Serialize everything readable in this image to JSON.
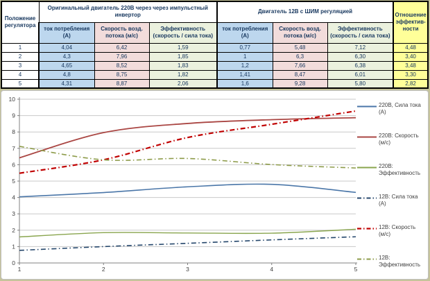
{
  "colors": {
    "col_current": "#BDD7EE",
    "col_speed": "#F2DCDB",
    "col_efficiency": "#EBF1DE",
    "col_ratio": "#FFFF99",
    "header_text": "#17375E"
  },
  "table": {
    "corner_header": "Положение\nрегулятора",
    "group_220_header": "Оригинальный двигатель 220В через через импульстный\nинвертор",
    "group_12_header": "Двигатель 12В с ШИМ регуляцией",
    "ratio_header": "Отношение\nэффектив-\nности",
    "sub_headers": [
      "ток потребления\n(А)",
      "Скорость возд.\nпотока (м/с)",
      "Эффективность\n(скорость / сила тока)",
      "ток потребления\n(А)",
      "Скорость возд.\nпотока (м/с)",
      "Эффективность\n(скорость / сила тока)"
    ],
    "rows": [
      {
        "cells": [
          "1",
          "4,04",
          "6,42",
          "1,59",
          "0,77",
          "5,48",
          "7,12",
          "4,48"
        ]
      },
      {
        "cells": [
          "2",
          "4,3",
          "7,96",
          "1,85",
          "1",
          "6,3",
          "6,30",
          "3,40"
        ]
      },
      {
        "cells": [
          "3",
          "4,65",
          "8,52",
          "1,83",
          "1,2",
          "7,66",
          "6,38",
          "3,48"
        ]
      },
      {
        "cells": [
          "4",
          "4,8",
          "8,75",
          "1,82",
          "1,41",
          "8,47",
          "6,01",
          "3,30"
        ]
      },
      {
        "cells": [
          "5",
          "4,31",
          "8,87",
          "2,06",
          "1,6",
          "9,28",
          "5,80",
          "2,82"
        ]
      }
    ]
  },
  "chart_data": {
    "type": "line",
    "x": [
      1,
      2,
      3,
      4,
      5
    ],
    "x_ticks": [
      1,
      2,
      3,
      4,
      5
    ],
    "y_ticks": [
      0,
      1,
      2,
      3,
      4,
      5,
      6,
      7,
      8,
      9,
      10
    ],
    "xlim": [
      1,
      5
    ],
    "ylim": [
      0,
      10
    ],
    "grid": true,
    "smooth": true,
    "legend_position": "right",
    "grid_color": "#C8C8C8",
    "axis_color": "#808080",
    "tick_label_color": "#404040",
    "series": [
      {
        "name": "220В, Сила тока (А)",
        "label": "220В, Сила тока\n(А)",
        "values": [
          4.04,
          4.3,
          4.65,
          4.8,
          4.31
        ],
        "color": "#4A76A8",
        "dash": "solid",
        "width": 1.6
      },
      {
        "name": "220В: Скорость (м/с)",
        "label": "220В: Скорость\n(м/с)",
        "values": [
          6.42,
          7.96,
          8.52,
          8.75,
          8.87
        ],
        "color": "#AA4643",
        "dash": "solid",
        "width": 1.8
      },
      {
        "name": "220В: Эффективность",
        "label": "220В:\nЭффективность",
        "values": [
          1.59,
          1.85,
          1.83,
          1.82,
          2.06
        ],
        "color": "#89A54E",
        "dash": "solid",
        "width": 1.4
      },
      {
        "name": "12В: Сила тока (А)",
        "label": "12В: Сила тока\n(А)",
        "values": [
          0.77,
          1,
          1.2,
          1.41,
          1.6
        ],
        "color": "#24466B",
        "dash": "dashdot",
        "width": 1.6
      },
      {
        "name": "12В: Скорость (м/с)",
        "label": "12В: Скорость\n(м/с)",
        "values": [
          5.48,
          6.3,
          7.66,
          8.47,
          9.28
        ],
        "color": "#C00000",
        "dash": "dashdot",
        "width": 2.2
      },
      {
        "name": "12В: Эффективность",
        "label": "12В:\nЭффективность",
        "values": [
          7.12,
          6.3,
          6.38,
          6.01,
          5.8
        ],
        "color": "#8D9B49",
        "dash": "dashdot",
        "width": 1.6
      }
    ]
  }
}
